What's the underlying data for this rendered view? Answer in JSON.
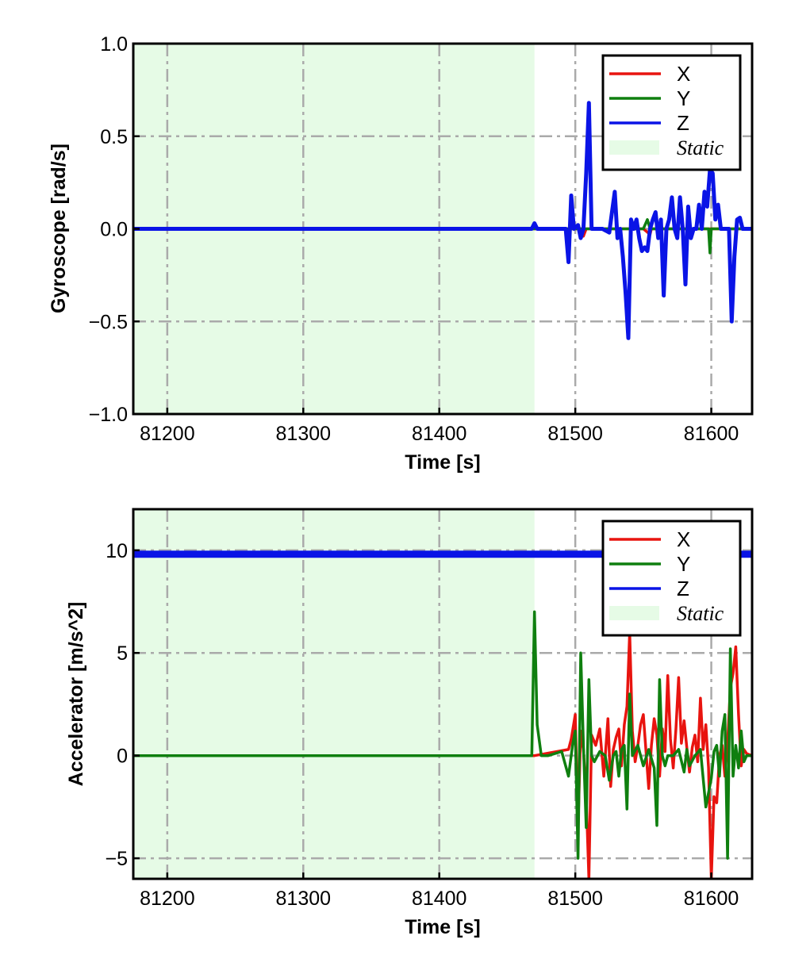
{
  "colors": {
    "x": "#e8140f",
    "y": "#0f7f0f",
    "z": "#0a14e6",
    "static_fill": "#e6fbe6",
    "grid": "#aaaaaa"
  },
  "chart_data": [
    {
      "type": "line",
      "xlabel": "Time [s]",
      "ylabel": "Gyroscope [rad/s]",
      "xlim": [
        81175,
        81630
      ],
      "ylim": [
        -1.0,
        1.0
      ],
      "xticks": [
        81200,
        81300,
        81400,
        81500,
        81600
      ],
      "xtick_labels": [
        "81200",
        "81300",
        "81400",
        "81500",
        "81600"
      ],
      "yticks": [
        1.0,
        0.5,
        0.0,
        -0.5,
        -1.0
      ],
      "ytick_labels": [
        "1.0",
        "0.5",
        "0.0",
        "−0.5",
        "−1.0"
      ],
      "grid": true,
      "legend_position": "top-right",
      "legend": [
        "X",
        "Y",
        "Z",
        "Static"
      ],
      "static_region": [
        81175,
        81470
      ],
      "series": [
        {
          "name": "X",
          "color_key": "x",
          "x": [
            81175,
            81470,
            81495,
            81500,
            81505,
            81506,
            81508,
            81525,
            81550,
            81555,
            81556,
            81560,
            81600,
            81630
          ],
          "y": [
            0.0,
            0.0,
            0.0,
            0.0,
            0.0,
            -0.04,
            0.0,
            0.0,
            0.0,
            -0.03,
            0.0,
            0.0,
            0.0,
            0.0
          ]
        },
        {
          "name": "Y",
          "color_key": "y",
          "x": [
            81175,
            81470,
            81550,
            81553,
            81555,
            81557,
            81598,
            81599,
            81600,
            81602,
            81630
          ],
          "y": [
            0.0,
            0.0,
            0.0,
            0.05,
            0.0,
            0.0,
            0.0,
            -0.13,
            0.0,
            0.0,
            0.0
          ],
          "x_extra": []
        },
        {
          "name": "Z",
          "color_key": "z",
          "x": [
            81175,
            81468,
            81470,
            81472,
            81493,
            81495,
            81497,
            81499,
            81502,
            81504,
            81506,
            81508,
            81510,
            81512,
            81520,
            81525,
            81527,
            81529,
            81531,
            81533,
            81535,
            81537,
            81539,
            81541,
            81543,
            81545,
            81547,
            81549,
            81551,
            81553,
            81555,
            81557,
            81559,
            81561,
            81563,
            81565,
            81567,
            81569,
            81571,
            81573,
            81575,
            81577,
            81579,
            81581,
            81583,
            81585,
            81587,
            81589,
            81591,
            81593,
            81595,
            81597,
            81599,
            81601,
            81603,
            81605,
            81607,
            81611,
            81613,
            81615,
            81617,
            81619,
            81621,
            81623,
            81630
          ],
          "y": [
            0.0,
            0.0,
            0.03,
            0.0,
            0.0,
            -0.18,
            0.18,
            0.0,
            0.02,
            -0.05,
            0.0,
            0.3,
            0.68,
            0.0,
            0.0,
            -0.02,
            0.09,
            0.2,
            -0.05,
            0.0,
            -0.15,
            -0.35,
            -0.59,
            0.05,
            0.0,
            0.05,
            -0.05,
            -0.12,
            -0.1,
            -0.12,
            0.0,
            0.05,
            0.09,
            -0.05,
            0.05,
            -0.36,
            0.0,
            0.05,
            0.17,
            0.0,
            -0.05,
            0.17,
            0.0,
            -0.3,
            0.12,
            -0.05,
            0.0,
            0.0,
            0.13,
            0.0,
            0.2,
            0.12,
            0.32,
            0.3,
            0.05,
            0.13,
            0.0,
            0.0,
            0.0,
            -0.5,
            -0.15,
            0.05,
            0.06,
            0.0,
            0.0
          ]
        }
      ]
    },
    {
      "type": "line",
      "xlabel": "Time [s]",
      "ylabel": "Accelerator [m/s^2]",
      "xlim": [
        81175,
        81630
      ],
      "ylim": [
        -6.0,
        12.0
      ],
      "xticks": [
        81200,
        81300,
        81400,
        81500,
        81600
      ],
      "xtick_labels": [
        "81200",
        "81300",
        "81400",
        "81500",
        "81600"
      ],
      "yticks": [
        10,
        5,
        0,
        -5
      ],
      "ytick_labels": [
        "10",
        "5",
        "0",
        "−5"
      ],
      "grid": true,
      "legend_position": "top-right",
      "legend": [
        "X",
        "Y",
        "Z",
        "Static"
      ],
      "static_region": [
        81175,
        81470
      ],
      "series": [
        {
          "name": "X",
          "color_key": "x",
          "x": [
            81175,
            81470,
            81495,
            81497,
            81500,
            81502,
            81504,
            81506,
            81508,
            81510,
            81512,
            81515,
            81518,
            81521,
            81524,
            81526,
            81528,
            81530,
            81532,
            81534,
            81536,
            81538,
            81540,
            81542,
            81544,
            81546,
            81548,
            81550,
            81552,
            81554,
            81556,
            81558,
            81560,
            81562,
            81564,
            81566,
            81568,
            81570,
            81572,
            81574,
            81576,
            81578,
            81580,
            81582,
            81584,
            81586,
            81588,
            81590,
            81592,
            81594,
            81596,
            81598,
            81600,
            81602,
            81604,
            81606,
            81608,
            81610,
            81612,
            81614,
            81616,
            81618,
            81620,
            81622,
            81624,
            81626,
            81630
          ],
          "y": [
            0.0,
            0.0,
            0.3,
            0.8,
            2.0,
            -3.5,
            1.2,
            0.3,
            -2.0,
            -6.0,
            1.0,
            0.5,
            1.3,
            -1.0,
            1.8,
            -1.5,
            0.3,
            0.9,
            1.3,
            -0.5,
            1.5,
            2.4,
            6.0,
            1.2,
            -0.3,
            0.5,
            1.5,
            2.0,
            0.2,
            -1.6,
            0.5,
            1.8,
            1.0,
            -1.0,
            1.3,
            0.2,
            3.9,
            0.8,
            -0.6,
            1.3,
            3.8,
            0.6,
            1.7,
            0.4,
            -0.8,
            0.4,
            1.0,
            -0.3,
            2.8,
            0.3,
            1.5,
            -0.6,
            -6.0,
            -2.0,
            -2.3,
            0.0,
            0.5,
            -1.0,
            0.6,
            3.3,
            4.0,
            5.3,
            2.0,
            -0.5,
            0.3,
            0.1,
            0.0
          ]
        },
        {
          "name": "Y",
          "color_key": "y",
          "x": [
            81175,
            81468,
            81470,
            81472,
            81475,
            81480,
            81490,
            81495,
            81498,
            81500,
            81502,
            81504,
            81506,
            81508,
            81510,
            81512,
            81514,
            81518,
            81522,
            81525,
            81528,
            81530,
            81532,
            81534,
            81536,
            81538,
            81540,
            81542,
            81546,
            81550,
            81554,
            81558,
            81560,
            81562,
            81564,
            81566,
            81568,
            81572,
            81576,
            81580,
            81582,
            81584,
            81588,
            81592,
            81596,
            81600,
            81602,
            81604,
            81606,
            81608,
            81610,
            81612,
            81614,
            81616,
            81618,
            81620,
            81622,
            81624,
            81626,
            81630
          ],
          "y": [
            0.0,
            0.0,
            7.0,
            1.5,
            0.0,
            0.0,
            0.2,
            -1.0,
            0.5,
            1.2,
            -5.0,
            5.0,
            0.5,
            -3.5,
            3.7,
            0.0,
            -0.3,
            0.2,
            0.0,
            -1.2,
            0.0,
            0.2,
            -1.0,
            0.3,
            0.5,
            -2.6,
            3.0,
            0.0,
            0.5,
            -0.5,
            0.3,
            -0.6,
            -3.4,
            3.7,
            0.0,
            -0.5,
            0.0,
            0.0,
            0.3,
            -0.8,
            0.3,
            -0.5,
            0.0,
            0.3,
            -2.5,
            -1.1,
            0.2,
            0.5,
            -1.0,
            1.2,
            2.0,
            -5.0,
            5.2,
            -1.0,
            0.5,
            -0.6,
            1.2,
            -0.3,
            0.0,
            0.0
          ]
        },
        {
          "name": "Z",
          "color_key": "z",
          "x": [
            81175,
            81630
          ],
          "y": [
            9.81,
            9.81
          ]
        }
      ]
    }
  ]
}
